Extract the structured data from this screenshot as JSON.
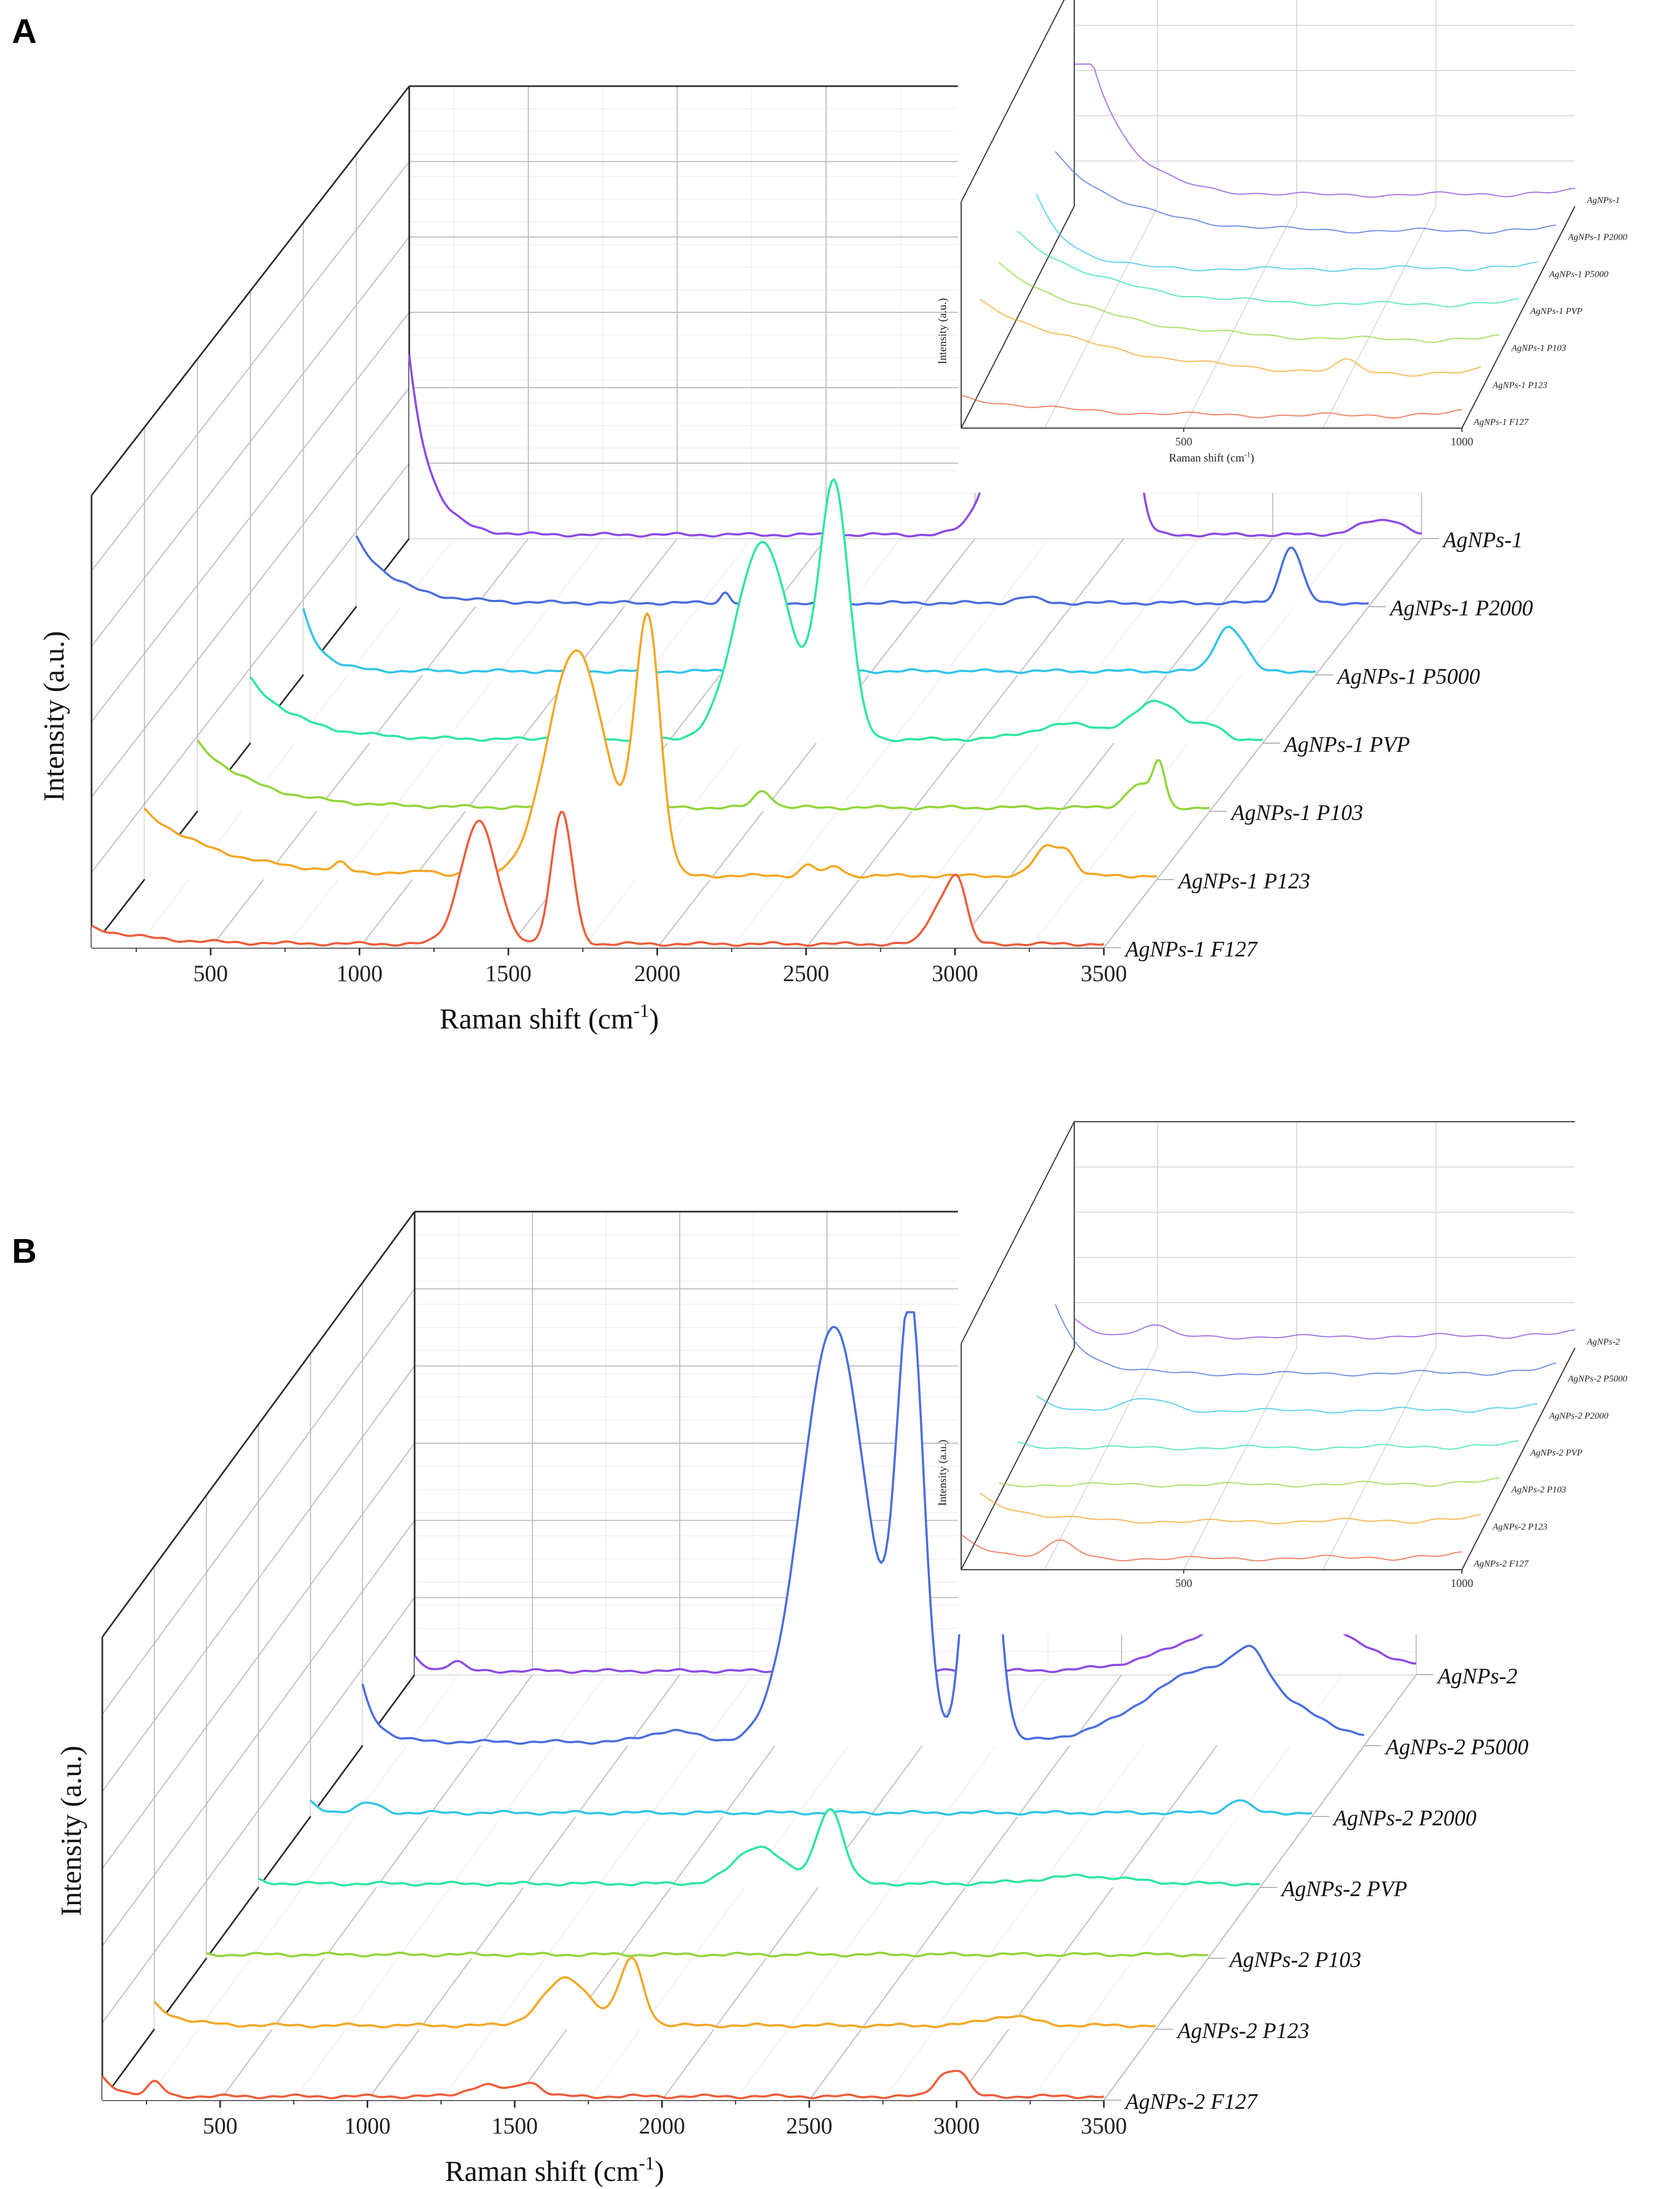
{
  "figure": {
    "panel_a_label": "A",
    "panel_b_label": "B"
  },
  "chart_data": [
    {
      "id": "A",
      "type": "line",
      "style": "3d-waterfall",
      "xlabel": "Raman shift (cm-1)",
      "ylabel": "Intensity (a.u.)",
      "xticks": [
        "500",
        "1000",
        "1500",
        "2000",
        "2500",
        "3000",
        "3500"
      ],
      "xlim": [
        100,
        3500
      ],
      "series": [
        {
          "name": "AgNPs-1 F127",
          "color": "#ee5d3a",
          "baseline": 0.4,
          "rise": 1.8,
          "rise_decay": 200,
          "peaks": [
            [
              1400,
              13,
              60
            ],
            [
              1680,
              14,
              35
            ],
            [
              2950,
              4,
              40
            ],
            [
              3010,
              6,
              30
            ]
          ]
        },
        {
          "name": "AgNPs-1 P123",
          "color": "#f5a623",
          "baseline": 0.4,
          "rise": 7,
          "rise_decay": 260,
          "peaks": [
            [
              760,
              0.8,
              20
            ],
            [
              1050,
              0.4,
              30
            ],
            [
              1200,
              0.4,
              30
            ],
            [
              1550,
              24,
              95
            ],
            [
              1790,
              27,
              42
            ],
            [
              2330,
              1.2,
              25
            ],
            [
              2420,
              1.0,
              25
            ],
            [
              3130,
              3,
              40
            ],
            [
              3200,
              2.2,
              30
            ]
          ]
        },
        {
          "name": "AgNPs-1 P103",
          "color": "#8fd63a",
          "baseline": 0.4,
          "rise": 7,
          "rise_decay": 200,
          "peaks": [
            [
              2000,
              1.8,
              30
            ],
            [
              3260,
              2.5,
              40
            ],
            [
              3330,
              4.5,
              20
            ]
          ]
        },
        {
          "name": "AgNPs-1 PVP",
          "color": "#2ee6a0",
          "baseline": 0.4,
          "rise": 6.5,
          "rise_decay": 160,
          "peaks": [
            [
              1130,
              0.5,
              30
            ],
            [
              1250,
              0.4,
              30
            ],
            [
              1820,
              21,
              90
            ],
            [
              2060,
              27,
              50
            ],
            [
              2850,
              1.6,
              120
            ],
            [
              3150,
              4,
              80
            ],
            [
              3330,
              1.2,
              40
            ]
          ]
        },
        {
          "name": "AgNPs-1 P5000",
          "color": "#33c4e8",
          "baseline": 0.4,
          "rise": 6.5,
          "rise_decay": 60,
          "peaks": [
            [
              3200,
              4.5,
              40
            ],
            [
              3260,
              1.5,
              30
            ]
          ]
        },
        {
          "name": "AgNPs-1 P2000",
          "color": "#4a6ee0",
          "baseline": 0.4,
          "rise": 7,
          "rise_decay": 130,
          "peaks": [
            [
              1340,
              1.2,
              15
            ],
            [
              2350,
              0.6,
              40
            ],
            [
              3240,
              6,
              35
            ]
          ]
        },
        {
          "name": "AgNPs-1",
          "color": "#8e4be6",
          "baseline": 0.4,
          "rise": 19,
          "rise_decay": 70,
          "peaks": [
            [
              2200,
              30,
              95
            ],
            [
              2470,
              41,
              46
            ],
            [
              3350,
              1.4,
              70
            ],
            [
              3420,
              0.6,
              30
            ]
          ]
        }
      ],
      "inset": {
        "xlabel": "Raman shift (cm-1)",
        "ylabel": "Intensity (a.u.)",
        "xticks": [
          "500",
          "1000"
        ],
        "xlim": [
          100,
          1000
        ],
        "labels": [
          "AgNPs-1 F127",
          "AgNPs-1 P123",
          "AgNPs-1 P103",
          "AgNPs-1 PVP",
          "AgNPs-1 P5000",
          "AgNPs-1 P2000",
          "AgNPs-1"
        ]
      }
    },
    {
      "id": "B",
      "type": "line",
      "style": "3d-waterfall",
      "xlabel": "Raman shift (cm-1)",
      "ylabel": "Intensity (a.u.)",
      "xticks": [
        "500",
        "1000",
        "1500",
        "2000",
        "2500",
        "3000",
        "3500"
      ],
      "xlim": [
        100,
        3500
      ],
      "series": [
        {
          "name": "AgNPs-2 F127",
          "color": "#ee5d3a",
          "baseline": 0.4,
          "rise": 2,
          "rise_decay": 60,
          "peaks": [
            [
              280,
              1.4,
              25
            ],
            [
              1400,
              1.2,
              60
            ],
            [
              1550,
              1.5,
              40
            ],
            [
              2950,
              2,
              30
            ],
            [
              3010,
              2.5,
              30
            ]
          ]
        },
        {
          "name": "AgNPs-2 P123",
          "color": "#f5a623",
          "baseline": 0.4,
          "rise": 2.4,
          "rise_decay": 80,
          "peaks": [
            [
              1500,
              5,
              80
            ],
            [
              1720,
              7,
              40
            ],
            [
              3000,
              1,
              80
            ]
          ]
        },
        {
          "name": "AgNPs-2 P103",
          "color": "#8fd63a",
          "baseline": 0.4,
          "rise": 0,
          "rise_decay": 50,
          "peaks": []
        },
        {
          "name": "AgNPs-2 PVP",
          "color": "#2ee6a0",
          "baseline": 0.4,
          "rise": 0.4,
          "rise_decay": 40,
          "peaks": [
            [
              1800,
              4,
              80
            ],
            [
              2040,
              8,
              45
            ],
            [
              2900,
              0.8,
              150
            ]
          ]
        },
        {
          "name": "AgNPs-2 P2000",
          "color": "#33c4e8",
          "baseline": 0.4,
          "rise": 1.2,
          "rise_decay": 40,
          "peaks": [
            [
              300,
              1,
              40
            ],
            [
              3250,
              1.4,
              35
            ]
          ]
        },
        {
          "name": "AgNPs-2 P5000",
          "color": "#4a6ee0",
          "baseline": 0.4,
          "rise": 6,
          "rise_decay": 50,
          "peaks": [
            [
              1150,
              1.2,
              80
            ],
            [
              1700,
              44,
              110
            ],
            [
              1960,
              45,
              45
            ],
            [
              2200,
              44,
              45
            ],
            [
              3000,
              8,
              230
            ],
            [
              3120,
              3,
              50
            ]
          ]
        },
        {
          "name": "AgNPs-2",
          "color": "#8e4be6",
          "baseline": 0.4,
          "rise": 1.5,
          "rise_decay": 40,
          "peaks": [
            [
              240,
              1,
              25
            ],
            [
              3000,
              6,
              250
            ],
            [
              3150,
              2,
              60
            ]
          ]
        }
      ],
      "inset": {
        "xlabel": "",
        "ylabel": "Intensity (a.u.)",
        "xticks": [
          "500",
          "1000"
        ],
        "xlim": [
          100,
          1000
        ],
        "labels": [
          "AgNPs-2 F127",
          "AgNPs-2 P123",
          "AgNPs-2 P103",
          "AgNPs-2 PVP",
          "AgNPs-2 P2000",
          "AgNPs-2 P5000",
          "AgNPs-2"
        ]
      }
    }
  ]
}
